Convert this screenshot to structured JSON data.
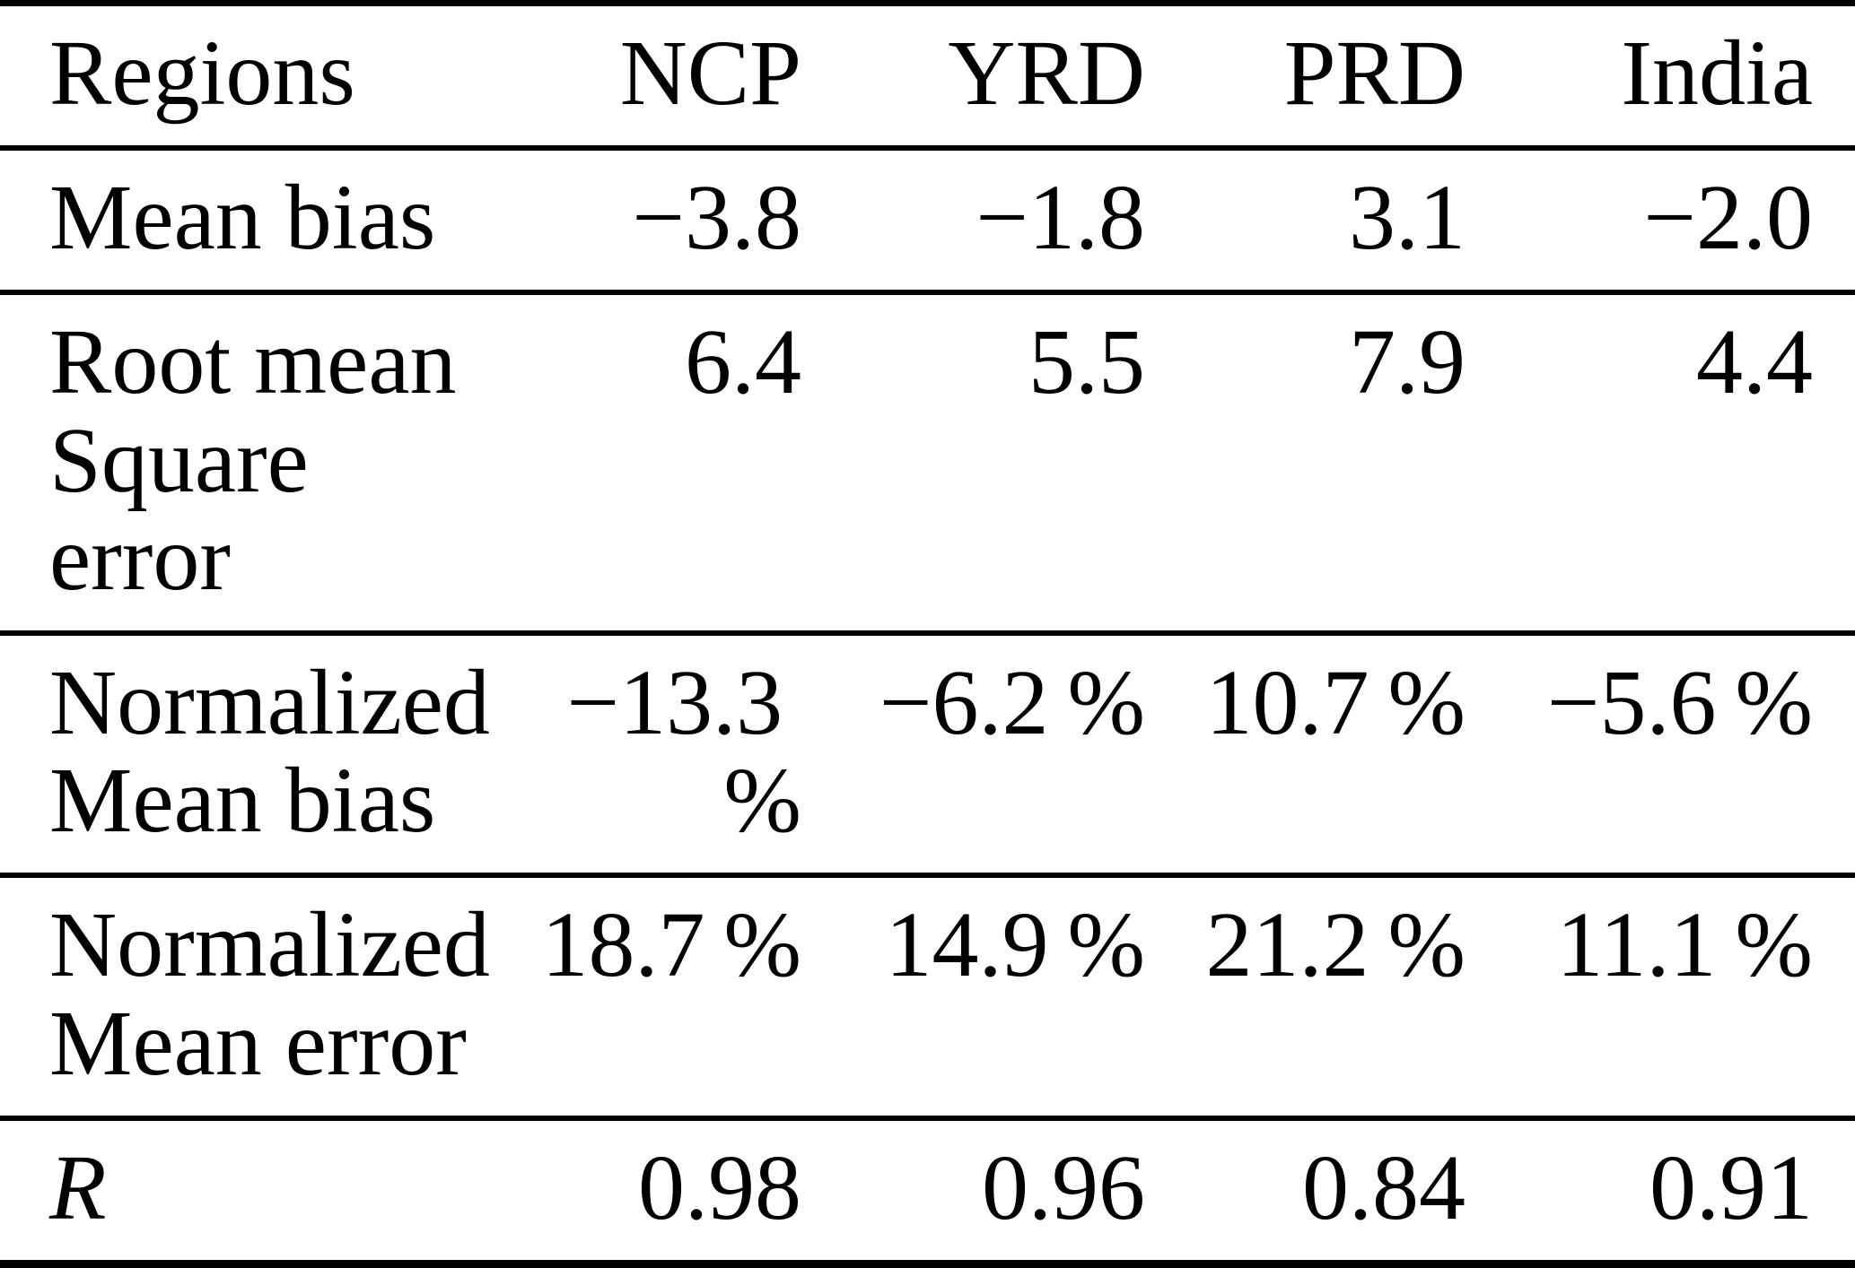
{
  "table": {
    "columns": [
      "Regions",
      "NCP",
      "YRD",
      "PRD",
      "India"
    ],
    "rows": [
      {
        "label": "Mean bias",
        "values": [
          "−3.8",
          "−1.8",
          "3.1",
          "−2.0"
        ]
      },
      {
        "label": "Root mean\nSquare error",
        "values": [
          "6.4",
          "5.5",
          "7.9",
          "4.4"
        ]
      },
      {
        "label": "Normalized\nMean bias",
        "values": [
          "−13.3 %",
          "−6.2 %",
          "10.7 %",
          "−5.6 %"
        ]
      },
      {
        "label": "Normalized\nMean error",
        "values": [
          "18.7 %",
          "14.9 %",
          "21.2 %",
          "11.1 %"
        ]
      },
      {
        "label": "R",
        "values": [
          "0.98",
          "0.96",
          "0.84",
          "0.91"
        ]
      }
    ],
    "text_color": "#000000",
    "background_color": "#ffffff"
  }
}
